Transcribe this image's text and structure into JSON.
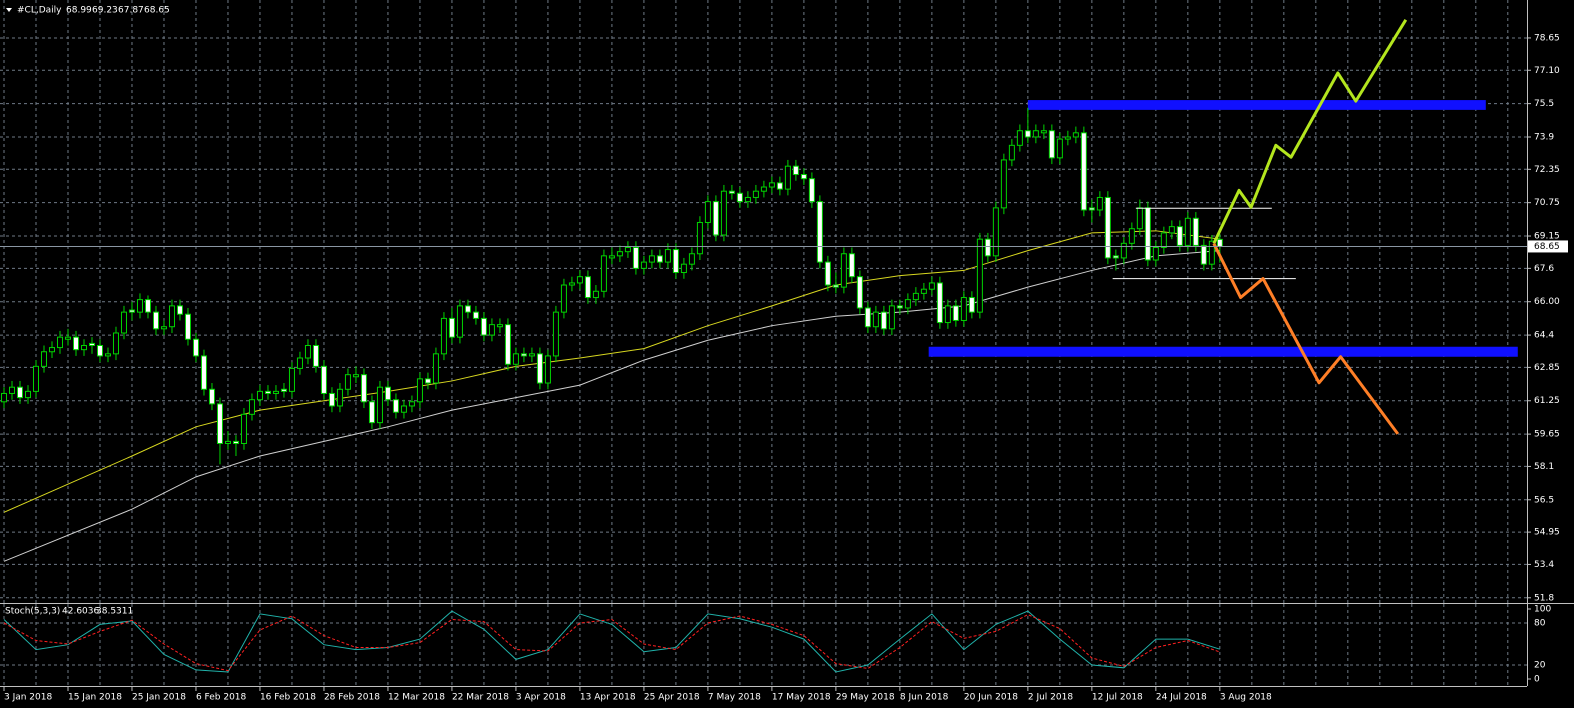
{
  "chart_data": {
    "type": "candlestick",
    "title": "#CL,Daily",
    "categories": [
      "3 Jan 2018",
      null,
      null,
      null,
      null,
      null,
      null,
      null,
      "15 Jan 2018",
      null,
      null,
      null,
      null,
      null,
      null,
      null,
      "25 Jan 2018",
      null,
      null,
      null,
      null,
      null,
      null,
      null,
      "6 Feb 2018",
      null,
      null,
      null,
      null,
      null,
      null,
      null,
      "16 Feb 2018",
      null,
      null,
      null,
      null,
      null,
      null,
      null,
      "28 Feb 2018",
      null,
      null,
      null,
      null,
      null,
      null,
      null,
      "12 Mar 2018",
      null,
      null,
      null,
      null,
      null,
      null,
      null,
      "22 Mar 2018",
      null,
      null,
      null,
      null,
      null,
      null,
      null,
      "3 Apr 2018",
      null,
      null,
      null,
      null,
      null,
      null,
      null,
      "13 Apr 2018",
      null,
      null,
      null,
      null,
      null,
      null,
      null,
      "25 Apr 2018",
      null,
      null,
      null,
      null,
      null,
      null,
      null,
      "7 May 2018",
      null,
      null,
      null,
      null,
      null,
      null,
      null,
      "17 May 2018",
      null,
      null,
      null,
      null,
      null,
      null,
      null,
      "29 May 2018",
      null,
      null,
      null,
      null,
      null,
      null,
      null,
      "8 Jun 2018",
      null,
      null,
      null,
      null,
      null,
      null,
      null,
      "20 Jun 2018",
      null,
      null,
      null,
      null,
      null,
      null,
      null,
      "2 Jul 2018",
      null,
      null,
      null,
      null,
      null,
      null,
      null,
      "12 Jul 2018",
      null,
      null,
      null,
      null,
      null,
      null,
      null,
      "24 Jul 2018",
      null,
      null,
      null,
      null,
      null,
      null,
      null,
      "3 Aug 2018"
    ],
    "ohlc": [
      [
        61.2,
        61.9,
        60.9,
        61.6
      ],
      [
        61.6,
        62.2,
        61.3,
        61.9
      ],
      [
        61.9,
        62.2,
        61.1,
        61.4
      ],
      [
        61.4,
        62.0,
        61.1,
        61.7
      ],
      [
        61.7,
        63.2,
        61.4,
        62.9
      ],
      [
        62.9,
        63.9,
        62.6,
        63.6
      ],
      [
        63.6,
        64.1,
        63.3,
        63.8
      ],
      [
        63.8,
        64.6,
        63.5,
        64.3
      ],
      [
        64.2,
        64.7,
        63.9,
        64.3
      ],
      [
        64.3,
        64.6,
        63.4,
        63.7
      ],
      [
        63.7,
        64.2,
        63.4,
        63.9
      ],
      [
        64.0,
        64.3,
        63.5,
        63.9
      ],
      [
        63.9,
        64.2,
        63.1,
        63.4
      ],
      [
        63.4,
        63.8,
        63.1,
        63.5
      ],
      [
        63.5,
        64.8,
        63.2,
        64.5
      ],
      [
        64.5,
        65.8,
        64.2,
        65.5
      ],
      [
        65.6,
        66.0,
        65.1,
        65.5
      ],
      [
        65.5,
        66.4,
        65.2,
        66.1
      ],
      [
        66.1,
        66.3,
        65.2,
        65.5
      ],
      [
        65.5,
        65.8,
        64.4,
        64.7
      ],
      [
        64.7,
        65.1,
        64.4,
        64.8
      ],
      [
        64.8,
        66.1,
        64.5,
        65.8
      ],
      [
        65.8,
        66.1,
        65.1,
        65.4
      ],
      [
        65.4,
        65.7,
        63.9,
        64.2
      ],
      [
        64.2,
        64.5,
        63.1,
        63.4
      ],
      [
        63.4,
        63.7,
        61.5,
        61.8
      ],
      [
        61.8,
        62.1,
        60.8,
        61.1
      ],
      [
        61.1,
        61.4,
        58.2,
        59.2
      ],
      [
        59.2,
        59.8,
        58.9,
        59.3
      ],
      [
        59.3,
        59.6,
        58.6,
        59.2
      ],
      [
        59.2,
        60.9,
        58.9,
        60.6
      ],
      [
        60.6,
        61.6,
        60.3,
        61.3
      ],
      [
        61.3,
        62.0,
        61.0,
        61.7
      ],
      [
        61.7,
        62.0,
        61.3,
        61.6
      ],
      [
        61.6,
        62.0,
        61.3,
        61.7
      ],
      [
        61.8,
        62.1,
        61.4,
        61.7
      ],
      [
        61.7,
        63.1,
        61.4,
        62.8
      ],
      [
        62.8,
        63.6,
        62.5,
        63.3
      ],
      [
        63.3,
        64.2,
        63.0,
        63.9
      ],
      [
        63.9,
        64.2,
        62.6,
        62.9
      ],
      [
        62.9,
        63.2,
        61.3,
        61.6
      ],
      [
        61.6,
        61.9,
        60.7,
        61.0
      ],
      [
        61.0,
        62.1,
        60.7,
        61.8
      ],
      [
        61.8,
        62.8,
        61.5,
        62.5
      ],
      [
        62.4,
        62.9,
        62.1,
        62.5
      ],
      [
        62.5,
        62.8,
        60.9,
        61.2
      ],
      [
        61.2,
        61.5,
        59.9,
        60.2
      ],
      [
        60.2,
        62.2,
        59.9,
        61.9
      ],
      [
        61.9,
        62.2,
        61.0,
        61.3
      ],
      [
        61.3,
        61.6,
        60.4,
        60.7
      ],
      [
        60.7,
        61.3,
        60.4,
        61.0
      ],
      [
        61.0,
        61.5,
        60.7,
        61.2
      ],
      [
        61.2,
        62.6,
        60.9,
        62.3
      ],
      [
        62.3,
        62.6,
        61.8,
        62.1
      ],
      [
        62.1,
        63.8,
        61.8,
        63.5
      ],
      [
        63.5,
        65.5,
        63.2,
        65.2
      ],
      [
        65.2,
        65.7,
        64.0,
        64.3
      ],
      [
        64.3,
        66.1,
        64.0,
        65.8
      ],
      [
        65.8,
        66.1,
        65.2,
        65.5
      ],
      [
        65.5,
        65.8,
        64.9,
        65.2
      ],
      [
        65.2,
        65.5,
        64.1,
        64.4
      ],
      [
        64.4,
        65.2,
        64.1,
        64.9
      ],
      [
        64.8,
        65.2,
        64.5,
        64.9
      ],
      [
        64.9,
        65.2,
        62.7,
        63.0
      ],
      [
        63.0,
        63.8,
        62.7,
        63.5
      ],
      [
        63.5,
        63.8,
        63.1,
        63.4
      ],
      [
        63.4,
        63.8,
        63.1,
        63.5
      ],
      [
        63.5,
        63.8,
        61.8,
        62.1
      ],
      [
        62.1,
        63.7,
        61.8,
        63.4
      ],
      [
        63.4,
        65.8,
        63.1,
        65.5
      ],
      [
        65.5,
        67.1,
        65.2,
        66.8
      ],
      [
        66.8,
        67.2,
        66.5,
        66.9
      ],
      [
        66.9,
        67.5,
        66.6,
        67.2
      ],
      [
        67.2,
        67.5,
        65.9,
        66.2
      ],
      [
        66.2,
        66.8,
        65.9,
        66.5
      ],
      [
        66.5,
        68.5,
        66.2,
        68.2
      ],
      [
        68.1,
        68.6,
        67.8,
        68.2
      ],
      [
        68.2,
        68.7,
        67.9,
        68.4
      ],
      [
        68.4,
        68.9,
        68.1,
        68.6
      ],
      [
        68.6,
        68.9,
        67.3,
        67.6
      ],
      [
        67.6,
        68.2,
        67.3,
        67.9
      ],
      [
        67.9,
        68.5,
        67.6,
        68.2
      ],
      [
        68.2,
        68.5,
        67.6,
        67.9
      ],
      [
        67.9,
        68.8,
        67.6,
        68.5
      ],
      [
        68.5,
        68.8,
        67.1,
        67.4
      ],
      [
        67.4,
        68.1,
        67.1,
        67.8
      ],
      [
        67.8,
        68.6,
        67.5,
        68.3
      ],
      [
        68.3,
        70.1,
        68.0,
        69.8
      ],
      [
        69.8,
        71.1,
        69.5,
        70.8
      ],
      [
        70.8,
        71.1,
        68.9,
        69.2
      ],
      [
        69.2,
        71.6,
        68.9,
        71.3
      ],
      [
        71.3,
        71.6,
        70.9,
        71.2
      ],
      [
        71.2,
        71.5,
        70.5,
        70.8
      ],
      [
        70.8,
        71.3,
        70.5,
        71.0
      ],
      [
        71.0,
        71.6,
        70.7,
        71.3
      ],
      [
        71.3,
        71.8,
        71.0,
        71.5
      ],
      [
        71.5,
        72.0,
        71.2,
        71.7
      ],
      [
        71.7,
        72.0,
        71.1,
        71.4
      ],
      [
        71.4,
        72.8,
        71.1,
        72.5
      ],
      [
        72.5,
        72.8,
        71.8,
        72.1
      ],
      [
        72.1,
        72.4,
        71.6,
        71.9
      ],
      [
        71.9,
        72.2,
        70.5,
        70.8
      ],
      [
        70.8,
        71.1,
        67.6,
        67.9
      ],
      [
        67.9,
        68.2,
        66.5,
        66.8
      ],
      [
        66.8,
        67.4,
        66.4,
        66.7
      ],
      [
        66.7,
        68.6,
        66.4,
        68.3
      ],
      [
        68.3,
        68.6,
        66.9,
        67.2
      ],
      [
        67.2,
        67.5,
        65.4,
        65.7
      ],
      [
        65.7,
        66.0,
        64.5,
        64.8
      ],
      [
        64.8,
        65.8,
        64.5,
        65.5
      ],
      [
        65.5,
        65.8,
        64.4,
        64.7
      ],
      [
        64.7,
        66.1,
        64.4,
        65.8
      ],
      [
        65.8,
        66.1,
        65.4,
        65.7
      ],
      [
        65.7,
        66.4,
        65.4,
        66.1
      ],
      [
        66.1,
        66.7,
        65.8,
        66.4
      ],
      [
        66.4,
        66.9,
        66.1,
        66.6
      ],
      [
        66.6,
        67.2,
        66.3,
        66.9
      ],
      [
        66.9,
        67.2,
        64.7,
        65.0
      ],
      [
        65.0,
        66.1,
        64.7,
        65.8
      ],
      [
        65.8,
        66.1,
        64.8,
        65.1
      ],
      [
        65.1,
        66.5,
        64.8,
        66.2
      ],
      [
        66.2,
        66.5,
        65.2,
        65.5
      ],
      [
        65.5,
        69.3,
        65.2,
        69.0
      ],
      [
        69.0,
        69.3,
        67.9,
        68.2
      ],
      [
        68.2,
        70.8,
        67.9,
        70.5
      ],
      [
        70.5,
        73.1,
        70.2,
        72.8
      ],
      [
        72.8,
        73.8,
        72.5,
        73.5
      ],
      [
        73.5,
        74.5,
        73.2,
        74.2
      ],
      [
        74.2,
        75.3,
        73.6,
        73.9
      ],
      [
        73.9,
        74.5,
        73.6,
        74.2
      ],
      [
        74.1,
        74.5,
        73.8,
        74.2
      ],
      [
        74.2,
        74.5,
        72.6,
        72.9
      ],
      [
        72.9,
        74.1,
        72.6,
        73.8
      ],
      [
        73.8,
        74.2,
        73.5,
        73.9
      ],
      [
        73.9,
        74.4,
        73.6,
        74.1
      ],
      [
        74.1,
        74.4,
        70.1,
        70.4
      ],
      [
        70.5,
        70.9,
        69.8,
        70.4
      ],
      [
        70.4,
        71.3,
        70.1,
        71.0
      ],
      [
        71.0,
        71.3,
        67.8,
        68.1
      ],
      [
        68.2,
        68.5,
        67.5,
        68.1
      ],
      [
        68.1,
        69.1,
        67.8,
        68.8
      ],
      [
        68.8,
        69.8,
        68.5,
        69.5
      ],
      [
        69.5,
        70.9,
        69.2,
        70.5
      ],
      [
        70.5,
        70.8,
        67.7,
        68.0
      ],
      [
        68.0,
        68.9,
        67.7,
        68.6
      ],
      [
        68.6,
        69.6,
        68.3,
        69.3
      ],
      [
        69.3,
        69.9,
        69.0,
        69.6
      ],
      [
        69.6,
        69.9,
        68.4,
        68.7
      ],
      [
        68.7,
        70.3,
        68.4,
        70.0
      ],
      [
        70.0,
        70.3,
        68.4,
        68.7
      ],
      [
        68.7,
        69.0,
        67.5,
        67.8
      ],
      [
        67.8,
        69.2,
        67.5,
        68.9
      ],
      [
        68.99,
        69.23,
        67.87,
        68.65
      ]
    ],
    "up_color": "#000000",
    "down_color": "#ffffff",
    "wick_color": "#00d400",
    "xlim": [
      -0.5,
      190.4
    ],
    "ylim": [
      51.55,
      80.47
    ],
    "yticks": [
      78.65,
      {
        "value": 77.1,
        "label": "77.10"
      },
      75.5,
      73.9,
      72.35,
      70.75,
      69.15,
      67.6,
      {
        "value": 66.0,
        "label": "66.00"
      },
      64.4,
      62.85,
      61.25,
      59.65,
      58.1,
      56.5,
      54.95,
      53.4,
      51.8
    ],
    "grid": true,
    "moving_averages": [
      {
        "color": "#d8d820",
        "x": [
          0,
          16,
          24,
          32,
          40,
          48,
          56,
          64,
          72,
          80,
          88,
          96,
          104,
          112,
          120,
          128,
          136,
          144,
          152
        ],
        "values": [
          55.9,
          58.6,
          60.0,
          60.8,
          61.25,
          61.7,
          62.2,
          62.9,
          63.3,
          63.75,
          64.85,
          65.8,
          66.8,
          67.25,
          67.5,
          68.45,
          69.3,
          69.4,
          69.0
        ]
      },
      {
        "color": "#d0d0d0",
        "x": [
          0,
          16,
          24,
          32,
          40,
          48,
          56,
          64,
          72,
          80,
          88,
          96,
          104,
          112,
          120,
          128,
          136,
          144,
          152
        ],
        "values": [
          53.55,
          56.05,
          57.6,
          58.6,
          59.3,
          60.0,
          60.8,
          61.4,
          62.0,
          63.2,
          64.15,
          64.85,
          65.3,
          65.5,
          65.8,
          66.7,
          67.5,
          68.2,
          68.45
        ]
      }
    ],
    "zones": [
      {
        "color": "#1010ff",
        "x": [
          128,
          185.25
        ],
        "y": [
          75.2,
          75.67
        ]
      },
      {
        "color": "#1010ff",
        "x": [
          115.6,
          189.25
        ],
        "y": [
          63.36,
          63.84
        ]
      }
    ],
    "paths": [
      {
        "color": "#b4e61e",
        "x": [
          151.25,
          154.4,
          155.9,
          159,
          160.9,
          166.75,
          169,
          175.25
        ],
        "y": [
          68.79,
          71.34,
          70.53,
          73.5,
          72.93,
          76.97,
          75.62,
          79.52
        ]
      },
      {
        "color": "#ff7f27",
        "x": [
          151.25,
          154.6,
          157.4,
          164.4,
          167.1,
          174.25
        ],
        "y": [
          68.79,
          66.2,
          67.11,
          62.11,
          63.36,
          59.66
        ]
      }
    ],
    "levels": [
      {
        "color": "#ffffff",
        "x": [
          141.5,
          158.5
        ],
        "y": 70.48
      },
      {
        "color": "#ffffff",
        "x": [
          138.6,
          161.5
        ],
        "y": 67.11
      }
    ],
    "stochastic": {
      "type": "line",
      "title": "Stoch(5,3,3)",
      "ylim": [
        0,
        100
      ],
      "yticks": [
        100,
        80,
        20,
        0
      ],
      "series": [
        {
          "color": "#20b2aa",
          "dash": false,
          "x": [
            0,
            4,
            8,
            12,
            16,
            20,
            24,
            28,
            32,
            36,
            40,
            44,
            48,
            52,
            56,
            60,
            64,
            68,
            72,
            76,
            80,
            84,
            88,
            92,
            96,
            100,
            104,
            108,
            112,
            116,
            120,
            124,
            128,
            132,
            136,
            140,
            144,
            148,
            152
          ],
          "values": [
            85,
            42,
            49,
            78,
            83,
            35,
            13,
            10,
            93,
            86,
            49,
            42,
            45,
            57,
            97,
            71,
            28,
            42,
            93,
            78,
            39,
            45,
            93,
            86,
            74,
            57,
            10,
            20,
            57,
            93,
            42,
            78,
            97,
            57,
            20,
            16,
            57,
            57,
            42.6036
          ]
        },
        {
          "color": "#ff2020",
          "dash": true,
          "x": [
            0,
            4,
            8,
            12,
            16,
            20,
            24,
            28,
            32,
            36,
            40,
            44,
            48,
            52,
            56,
            60,
            64,
            68,
            72,
            76,
            80,
            84,
            88,
            92,
            96,
            100,
            104,
            108,
            112,
            116,
            120,
            124,
            128,
            132,
            136,
            140,
            144,
            148,
            152
          ],
          "values": [
            80,
            55,
            50,
            68,
            84,
            50,
            22,
            12,
            70,
            90,
            62,
            45,
            45,
            52,
            85,
            82,
            42,
            40,
            80,
            85,
            50,
            42,
            80,
            90,
            78,
            62,
            22,
            15,
            45,
            82,
            58,
            68,
            92,
            72,
            30,
            18,
            45,
            55,
            38.5311
          ]
        }
      ]
    }
  }
}
